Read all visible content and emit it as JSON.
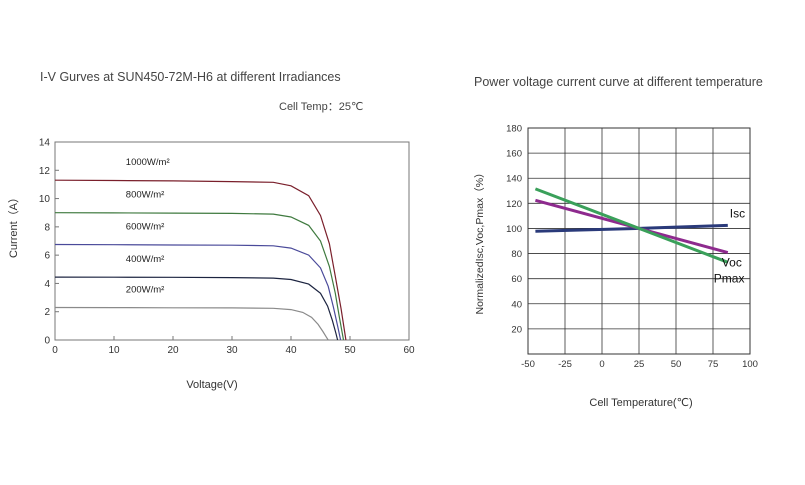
{
  "chart_data": [
    {
      "type": "line",
      "title": "I-V Gurves at SUN450-72M-H6 at different Irradiances",
      "subtitle": "Cell Temp：25℃",
      "xlabel": "Voltage(V)",
      "ylabel": "Current（A）",
      "xlim": [
        0,
        60
      ],
      "ylim": [
        0,
        14
      ],
      "x_ticks": [
        "0",
        "10",
        "20",
        "30",
        "40",
        "50",
        "60"
      ],
      "y_ticks": [
        "0",
        "2",
        "4",
        "6",
        "8",
        "10",
        "12",
        "14"
      ],
      "grid": false,
      "series": [
        {
          "name": "1000W/m²",
          "color": "#7a1f2b",
          "points": [
            [
              0,
              11.3
            ],
            [
              10,
              11.28
            ],
            [
              20,
              11.25
            ],
            [
              30,
              11.2
            ],
            [
              37,
              11.15
            ],
            [
              40,
              10.9
            ],
            [
              43,
              10.2
            ],
            [
              45,
              8.8
            ],
            [
              46.5,
              6.8
            ],
            [
              47.5,
              4.5
            ],
            [
              48.5,
              2.2
            ],
            [
              49.3,
              0
            ]
          ]
        },
        {
          "name": "800W/m²",
          "color": "#3f7a3f",
          "points": [
            [
              0,
              9.0
            ],
            [
              10,
              8.99
            ],
            [
              20,
              8.97
            ],
            [
              30,
              8.95
            ],
            [
              37,
              8.9
            ],
            [
              40,
              8.7
            ],
            [
              43,
              8.1
            ],
            [
              45,
              7.0
            ],
            [
              46.5,
              5.2
            ],
            [
              47.5,
              3.3
            ],
            [
              48.2,
              1.6
            ],
            [
              48.9,
              0
            ]
          ]
        },
        {
          "name": "600W/m²",
          "color": "#4a4a9a",
          "points": [
            [
              0,
              6.75
            ],
            [
              10,
              6.74
            ],
            [
              20,
              6.72
            ],
            [
              30,
              6.7
            ],
            [
              37,
              6.66
            ],
            [
              40,
              6.5
            ],
            [
              43,
              6.0
            ],
            [
              45,
              5.1
            ],
            [
              46.3,
              3.8
            ],
            [
              47.2,
              2.3
            ],
            [
              47.9,
              1.0
            ],
            [
              48.4,
              0
            ]
          ]
        },
        {
          "name": "400W/m²",
          "color": "#1c2440",
          "points": [
            [
              0,
              4.45
            ],
            [
              10,
              4.44
            ],
            [
              20,
              4.43
            ],
            [
              30,
              4.41
            ],
            [
              37,
              4.38
            ],
            [
              40,
              4.28
            ],
            [
              43,
              3.95
            ],
            [
              45,
              3.3
            ],
            [
              46.2,
              2.4
            ],
            [
              47.0,
              1.4
            ],
            [
              47.6,
              0.5
            ],
            [
              47.9,
              0
            ]
          ]
        },
        {
          "name": "200W/m²",
          "color": "#8a8a8a",
          "points": [
            [
              0,
              2.3
            ],
            [
              10,
              2.29
            ],
            [
              20,
              2.28
            ],
            [
              30,
              2.27
            ],
            [
              37,
              2.24
            ],
            [
              40,
              2.15
            ],
            [
              42,
              1.95
            ],
            [
              43.5,
              1.6
            ],
            [
              44.6,
              1.1
            ],
            [
              45.4,
              0.6
            ],
            [
              46.0,
              0.2
            ],
            [
              46.3,
              0
            ]
          ]
        }
      ]
    },
    {
      "type": "line",
      "title": "Power voltage current curve at different temperature",
      "xlabel": "Cell Temperature(℃)",
      "ylabel": "NormalizedIsc,Voc,Pmax（%）",
      "xlim": [
        -50,
        100
      ],
      "ylim": [
        0,
        180
      ],
      "x_ticks": [
        "-50",
        "-25",
        "0",
        "25",
        "50",
        "75",
        "100"
      ],
      "y_ticks": [
        "20",
        "40",
        "60",
        "80",
        "100",
        "120",
        "140",
        "160",
        "180"
      ],
      "grid": true,
      "series": [
        {
          "name": "Isc",
          "color": "#2a3a7a",
          "points": [
            [
              -45,
              97.8
            ],
            [
              25,
              100
            ],
            [
              85,
              102.4
            ]
          ]
        },
        {
          "name": "Voc",
          "color": "#8e2a8e",
          "points": [
            [
              -45,
              122.4
            ],
            [
              25,
              100
            ],
            [
              85,
              80.8
            ]
          ]
        },
        {
          "name": "Pmax",
          "color": "#3aa05a",
          "points": [
            [
              -45,
              131.5
            ],
            [
              25,
              100
            ],
            [
              85,
              73
            ]
          ]
        }
      ]
    }
  ]
}
